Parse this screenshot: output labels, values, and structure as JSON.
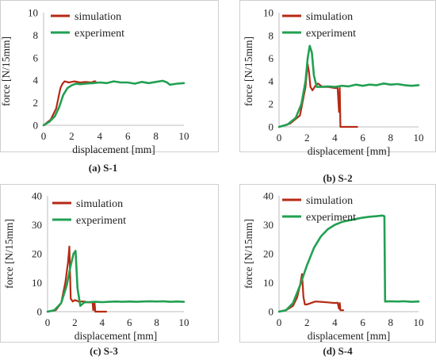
{
  "colors": {
    "simulation": "#b52a14",
    "experiment": "#22a052"
  },
  "chart_data": [
    {
      "type": "line",
      "caption": "(a) S-1",
      "xlabel": "displacement [mm]",
      "ylabel": "force [N/15mm]",
      "xlim": [
        0,
        10
      ],
      "ylim": [
        0,
        10
      ],
      "xticks": [
        0,
        2,
        4,
        6,
        8,
        10
      ],
      "yticks": [
        0,
        2,
        4,
        6,
        8,
        10
      ],
      "grid": false,
      "legend_position": "top-left",
      "series": [
        {
          "name": "simulation",
          "x": [
            0,
            0.5,
            0.9,
            1.2,
            1.35,
            1.5,
            1.8,
            2.2,
            2.6,
            3.0,
            3.4,
            3.6,
            3.7
          ],
          "y": [
            0,
            0.5,
            1.5,
            3.3,
            3.7,
            3.9,
            3.8,
            3.9,
            3.8,
            3.85,
            3.8,
            3.9,
            3.9
          ]
        },
        {
          "name": "experiment",
          "x": [
            0,
            0.4,
            0.8,
            1.1,
            1.4,
            1.7,
            2.0,
            2.3,
            2.6,
            3.0,
            3.5,
            4.0,
            4.5,
            5.0,
            5.5,
            6.0,
            6.5,
            7.0,
            7.5,
            8.0,
            8.5,
            8.8,
            9.0,
            9.5,
            10.0
          ],
          "y": [
            0,
            0.3,
            0.8,
            1.6,
            2.7,
            3.3,
            3.55,
            3.7,
            3.65,
            3.7,
            3.75,
            3.8,
            3.75,
            3.9,
            3.8,
            3.8,
            3.7,
            3.85,
            3.75,
            3.85,
            3.95,
            3.8,
            3.6,
            3.7,
            3.75
          ]
        }
      ]
    },
    {
      "type": "line",
      "caption": "(b) S-2",
      "xlabel": "displacement [mm]",
      "ylabel": "force [N/15mm]",
      "xlim": [
        0,
        10
      ],
      "ylim": [
        0,
        10
      ],
      "xticks": [
        0,
        2,
        4,
        6,
        8,
        10
      ],
      "yticks": [
        0,
        2,
        4,
        6,
        8,
        10
      ],
      "grid": false,
      "legend_position": "top-right",
      "series": [
        {
          "name": "simulation",
          "x": [
            0,
            0.8,
            1.5,
            1.9,
            2.05,
            2.15,
            2.25,
            2.4,
            2.6,
            2.8,
            3.1,
            3.5,
            4.0,
            4.2,
            4.3,
            4.35,
            4.4,
            5.6
          ],
          "y": [
            0,
            0.3,
            1.0,
            3.5,
            5.5,
            4.8,
            3.5,
            3.2,
            3.6,
            3.8,
            3.5,
            3.5,
            3.4,
            3.4,
            1.3,
            3.4,
            0,
            0
          ]
        },
        {
          "name": "experiment",
          "x": [
            0,
            0.6,
            1.2,
            1.6,
            1.9,
            2.05,
            2.2,
            2.35,
            2.5,
            2.7,
            3.0,
            3.5,
            4.0,
            4.5,
            5.0,
            5.5,
            6.0,
            6.5,
            7.0,
            7.5,
            8.0,
            8.5,
            9.0,
            9.5,
            10.0
          ],
          "y": [
            0,
            0.2,
            0.8,
            2.0,
            4.0,
            6.0,
            7.1,
            6.5,
            4.5,
            3.5,
            3.5,
            3.55,
            3.5,
            3.6,
            3.55,
            3.7,
            3.6,
            3.7,
            3.65,
            3.8,
            3.7,
            3.75,
            3.65,
            3.6,
            3.65
          ]
        }
      ]
    },
    {
      "type": "line",
      "caption": "(c) S-3",
      "xlabel": "displacement [mm]",
      "ylabel": "force [N/15mm]",
      "xlim": [
        0,
        10
      ],
      "ylim": [
        0,
        40
      ],
      "xticks": [
        0,
        2,
        4,
        6,
        8,
        10
      ],
      "yticks": [
        0,
        10,
        20,
        30,
        40
      ],
      "grid": false,
      "legend_position": "top-right",
      "series": [
        {
          "name": "simulation",
          "x": [
            0,
            0.6,
            1.0,
            1.3,
            1.5,
            1.6,
            1.7,
            1.85,
            2.0,
            2.3,
            2.7,
            3.0,
            3.3,
            3.35,
            3.45,
            3.5,
            4.0,
            4.3
          ],
          "y": [
            0,
            0.5,
            3.0,
            10.0,
            17.0,
            22.5,
            4.5,
            3.5,
            4.0,
            3.5,
            3.5,
            3.2,
            3.2,
            0.5,
            3.0,
            0,
            0,
            0
          ]
        },
        {
          "name": "experiment",
          "x": [
            0,
            0.5,
            1.0,
            1.4,
            1.7,
            1.9,
            2.05,
            2.2,
            2.4,
            2.7,
            3.0,
            3.5,
            4.0,
            4.5,
            5.0,
            5.5,
            6.0,
            6.5,
            7.0,
            7.5,
            8.0,
            8.5,
            9.0,
            9.5,
            10.0
          ],
          "y": [
            0,
            0.5,
            3.0,
            9.0,
            16.0,
            20.0,
            21.0,
            8.0,
            2.0,
            3.2,
            3.3,
            3.4,
            3.3,
            3.4,
            3.5,
            3.4,
            3.5,
            3.4,
            3.5,
            3.6,
            3.5,
            3.6,
            3.4,
            3.5,
            3.4
          ]
        }
      ]
    },
    {
      "type": "line",
      "caption": "(d) S-4",
      "xlabel": "displacement [mm]",
      "ylabel": "force [N/15mm]",
      "xlim": [
        0,
        10
      ],
      "ylim": [
        0,
        40
      ],
      "xticks": [
        0,
        2,
        4,
        6,
        8,
        10
      ],
      "yticks": [
        0,
        10,
        20,
        30,
        40
      ],
      "grid": false,
      "legend_position": "top-right",
      "series": [
        {
          "name": "simulation",
          "x": [
            0,
            0.5,
            1.0,
            1.3,
            1.5,
            1.65,
            1.75,
            1.85,
            2.0,
            2.3,
            2.6,
            3.0,
            3.5,
            4.0,
            4.2,
            4.3,
            4.35,
            4.4,
            4.6
          ],
          "y": [
            0,
            0.5,
            2.0,
            5.0,
            9.0,
            13.0,
            5.0,
            2.5,
            2.5,
            3.0,
            3.5,
            3.4,
            3.2,
            3.0,
            3.1,
            1.0,
            3.0,
            0.5,
            0.5
          ]
        },
        {
          "name": "experiment",
          "x": [
            0,
            0.5,
            1.0,
            1.5,
            2.0,
            2.5,
            3.0,
            3.5,
            4.0,
            4.5,
            5.0,
            5.5,
            6.0,
            6.5,
            7.0,
            7.4,
            7.55,
            7.6,
            8.0,
            8.5,
            9.0,
            9.5,
            10.0
          ],
          "y": [
            0,
            0.5,
            3.0,
            9.0,
            16.0,
            22.0,
            26.0,
            28.5,
            30.0,
            31.0,
            31.5,
            32.0,
            32.5,
            32.8,
            33.0,
            33.2,
            33.0,
            3.5,
            3.6,
            3.5,
            3.6,
            3.4,
            3.5
          ]
        }
      ]
    }
  ]
}
